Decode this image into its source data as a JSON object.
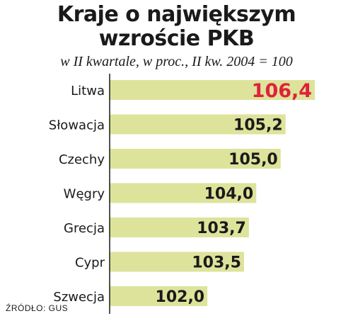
{
  "title_line1": "Kraje o największym",
  "title_line2": "wzroście PKB",
  "subtitle": "w II kwartale, w proc., II kw. 2004 = 100",
  "source": "ŹRÓDŁO: GUS",
  "colors": {
    "bar": "#dde39a",
    "highlight_text": "#e0213a",
    "text": "#1a1a1a",
    "axis": "#1a1a1a"
  },
  "chart_data": {
    "type": "bar",
    "orientation": "horizontal",
    "categories": [
      "Litwa",
      "Słowacja",
      "Czechy",
      "Węgry",
      "Grecja",
      "Cypr",
      "Szwecja"
    ],
    "values": [
      106.4,
      105.2,
      105.0,
      104.0,
      103.7,
      103.5,
      102.0
    ],
    "value_labels": [
      "106,4",
      "105,2",
      "105,0",
      "104,0",
      "103,7",
      "103,5",
      "102,0"
    ],
    "highlight_index": 0,
    "xlim": [
      98.0,
      106.6
    ]
  }
}
